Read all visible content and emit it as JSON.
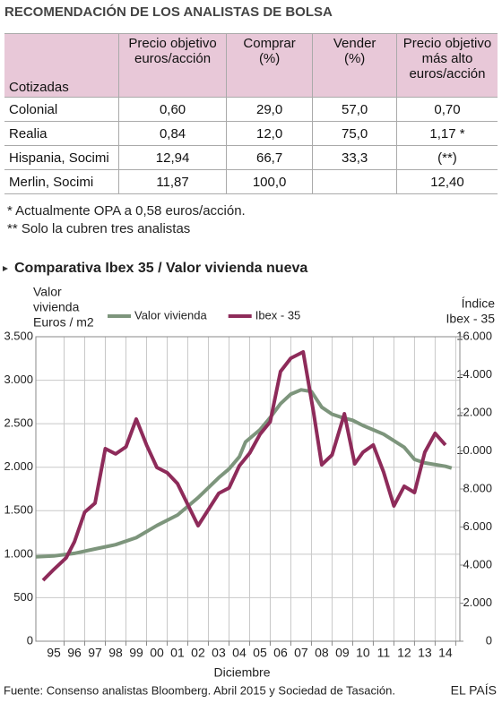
{
  "header": {
    "title": "RECOMENDACIÓN DE LOS ANALISTAS DE BOLSA"
  },
  "table": {
    "columns": [
      "Cotizadas",
      "Precio objetivo\neuros/acción",
      "Comprar\n(%)",
      "Vender\n(%)",
      "Precio objetivo\nmás alto\neuros/acción"
    ],
    "rows": [
      [
        "Colonial",
        "0,60",
        "29,0",
        "57,0",
        "0,70"
      ],
      [
        "Realia",
        "0,84",
        "12,0",
        "75,0",
        "1,17 *"
      ],
      [
        "Hispania, Socimi",
        "12,94",
        "66,7",
        "33,3",
        "(**)"
      ],
      [
        "Merlin, Socimi",
        "11,87",
        "100,0",
        null,
        "12,40"
      ]
    ]
  },
  "notes": [
    "* Actualmente OPA a 0,58 euros/acción.",
    "** Solo la cubren tres analistas"
  ],
  "chart_data": {
    "type": "line",
    "title": "Comparativa Ibex 35 / Valor vivienda nueva",
    "ylabel": [
      "Valor",
      "vivienda",
      "Euros / m2"
    ],
    "y2label": [
      "Índice",
      "Ibex - 35"
    ],
    "xlabel": "Diciembre",
    "xlim": [
      1994.13,
      2014.7
    ],
    "xticks": [
      {
        "value": 1995,
        "label": "95"
      },
      {
        "value": 1996,
        "label": "96"
      },
      {
        "value": 1997,
        "label": "97"
      },
      {
        "value": 1998,
        "label": "98"
      },
      {
        "value": 1999,
        "label": "99"
      },
      {
        "value": 2000,
        "label": "00"
      },
      {
        "value": 2001,
        "label": "01"
      },
      {
        "value": 2002,
        "label": "02"
      },
      {
        "value": 2003,
        "label": "03"
      },
      {
        "value": 2004,
        "label": "04"
      },
      {
        "value": 2005,
        "label": "05"
      },
      {
        "value": 2006,
        "label": "06"
      },
      {
        "value": 2007,
        "label": "07"
      },
      {
        "value": 2008,
        "label": "08"
      },
      {
        "value": 2009,
        "label": "09"
      },
      {
        "value": 2010,
        "label": "10"
      },
      {
        "value": 2011,
        "label": "11"
      },
      {
        "value": 2012,
        "label": "12"
      },
      {
        "value": 2013,
        "label": "13"
      },
      {
        "value": 2014,
        "label": "14"
      }
    ],
    "ylim": [
      0,
      3500
    ],
    "yticks": [
      0,
      500,
      {
        "value": 1000,
        "label": "1.000"
      },
      {
        "value": 1500,
        "label": "1.500"
      },
      {
        "value": 2000,
        "label": "2.000"
      },
      {
        "value": 2500,
        "label": "2.500"
      },
      {
        "value": 3000,
        "label": "3.000"
      },
      {
        "value": 3500,
        "label": "3.500"
      }
    ],
    "y2lim": [
      0,
      16000
    ],
    "y2ticks": [
      0,
      {
        "value": 2000,
        "label": "2.000"
      },
      {
        "value": 4000,
        "label": "4.000"
      },
      {
        "value": 6000,
        "label": "6.000"
      },
      {
        "value": 8000,
        "label": "8.000"
      },
      {
        "value": 10000,
        "label": "10.000"
      },
      {
        "value": 12000,
        "label": "12.000"
      },
      {
        "value": 14000,
        "label": "14.000"
      },
      {
        "value": 16000,
        "label": "16.000"
      }
    ],
    "grid": true,
    "legend": "top",
    "series": [
      {
        "name": "Valor vivienda",
        "color": "#7d957c",
        "x": [
          1994.13,
          1995,
          1996,
          1997,
          1998,
          1999,
          2000,
          2001,
          2002,
          2003,
          2003.5,
          2004,
          2004.3,
          2005,
          2005.5,
          2006,
          2006.5,
          2007,
          2007.5,
          2008,
          2008.5,
          2009,
          2009.5,
          2010,
          2011,
          2012,
          2012.5,
          2013,
          2014,
          2014.3
        ],
        "values": [
          970,
          980,
          1010,
          1060,
          1110,
          1190,
          1330,
          1450,
          1650,
          1880,
          1980,
          2120,
          2290,
          2430,
          2570,
          2730,
          2840,
          2890,
          2870,
          2690,
          2610,
          2570,
          2540,
          2480,
          2380,
          2230,
          2090,
          2050,
          2010,
          1990
        ]
      },
      {
        "name": "Ibex - 35",
        "color": "#8e2b5a",
        "axis": "y2",
        "x": [
          1994.48,
          1995,
          1995.6,
          1996,
          1996.5,
          1997,
          1997.5,
          1998,
          1998.5,
          1999,
          1999.5,
          2000,
          2000.5,
          2001,
          2002,
          2003,
          2003.5,
          2004,
          2004.5,
          2005,
          2005.5,
          2006,
          2006.5,
          2007.1,
          2007.6,
          2008,
          2008.5,
          2009.1,
          2009.6,
          2010,
          2010.5,
          2011,
          2011.5,
          2012,
          2012.5,
          2013,
          2013.5,
          2014
        ],
        "values": [
          3200,
          3770,
          4380,
          5220,
          6780,
          7250,
          10120,
          9840,
          10210,
          11670,
          10310,
          9130,
          8850,
          8280,
          6070,
          7770,
          8050,
          9220,
          9880,
          10870,
          11530,
          14170,
          14870,
          15200,
          12050,
          9270,
          9790,
          11950,
          9320,
          9930,
          10310,
          8890,
          7110,
          8140,
          7810,
          9930,
          10920,
          10310
        ]
      }
    ],
    "source": "Fuente: Consenso analistas Bloomberg. Abril 2015  y Sociedad de Tasación.",
    "brand": "EL PAÍS"
  }
}
